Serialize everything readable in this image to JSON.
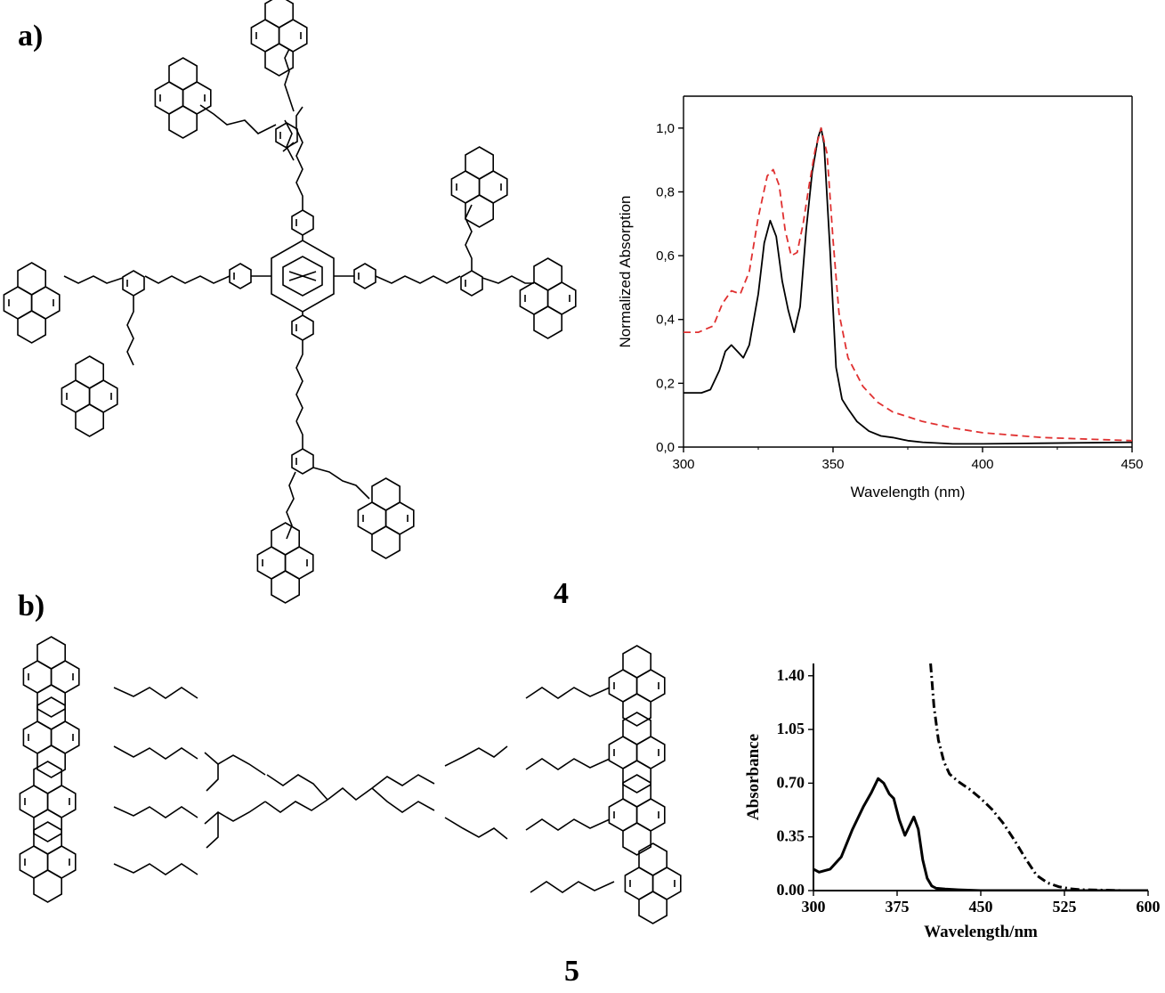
{
  "panel_labels": {
    "a": "a)",
    "b": "b)"
  },
  "compound_numbers": {
    "a": "4",
    "b": "5"
  },
  "chart_data": [
    {
      "type": "line",
      "xlabel": "Wavelength (nm)",
      "ylabel": "Normalized Absorption",
      "xlim": [
        300,
        450
      ],
      "ylim": [
        0,
        1.1
      ],
      "xticks": [
        "300",
        "350",
        "400",
        "450"
      ],
      "yticks": [
        "0,0",
        "0,2",
        "0,4",
        "0,6",
        "0,8",
        "1,0"
      ],
      "grid": false,
      "series": [
        {
          "color": "#000000",
          "style": "solid",
          "x": [
            300,
            303,
            306,
            309,
            312,
            314,
            316,
            318,
            320,
            322,
            325,
            327,
            329,
            331,
            333,
            335,
            337,
            339,
            341,
            343,
            345,
            346,
            347,
            349,
            351,
            353,
            355,
            358,
            362,
            366,
            370,
            375,
            380,
            390,
            400,
            420,
            450
          ],
          "y": [
            0.17,
            0.17,
            0.17,
            0.18,
            0.24,
            0.3,
            0.32,
            0.3,
            0.28,
            0.32,
            0.48,
            0.64,
            0.71,
            0.66,
            0.52,
            0.43,
            0.36,
            0.44,
            0.68,
            0.86,
            0.97,
            1.0,
            0.95,
            0.62,
            0.25,
            0.15,
            0.12,
            0.08,
            0.05,
            0.035,
            0.03,
            0.02,
            0.015,
            0.01,
            0.01,
            0.012,
            0.015
          ]
        },
        {
          "color": "#e03030",
          "style": "dashed",
          "x": [
            300,
            305,
            310,
            313,
            316,
            319,
            322,
            325,
            328,
            330,
            332,
            334,
            336,
            338,
            340,
            342,
            344,
            346,
            348,
            350,
            352,
            355,
            360,
            365,
            370,
            380,
            390,
            400,
            420,
            450
          ],
          "y": [
            0.36,
            0.36,
            0.38,
            0.45,
            0.49,
            0.48,
            0.55,
            0.72,
            0.85,
            0.87,
            0.82,
            0.68,
            0.6,
            0.61,
            0.7,
            0.82,
            0.93,
            1.0,
            0.92,
            0.65,
            0.42,
            0.28,
            0.19,
            0.14,
            0.11,
            0.08,
            0.06,
            0.045,
            0.03,
            0.02
          ]
        }
      ]
    },
    {
      "type": "line",
      "xlabel": "Wavelength/nm",
      "ylabel": "Absorbance",
      "xlim": [
        300,
        600
      ],
      "ylim": [
        0,
        1.48
      ],
      "xticks": [
        "300",
        "375",
        "450",
        "525",
        "600"
      ],
      "yticks": [
        "0.00",
        "0.35",
        "0.70",
        "1.05",
        "1.40"
      ],
      "grid": false,
      "series": [
        {
          "color": "#000000",
          "style": "solid",
          "x": [
            300,
            305,
            315,
            325,
            335,
            345,
            352,
            358,
            363,
            368,
            372,
            377,
            382,
            386,
            390,
            394,
            398,
            402,
            406,
            410,
            418,
            430,
            450,
            480,
            520,
            560,
            600
          ],
          "y": [
            0.14,
            0.12,
            0.14,
            0.22,
            0.4,
            0.55,
            0.64,
            0.73,
            0.7,
            0.63,
            0.6,
            0.46,
            0.36,
            0.42,
            0.48,
            0.4,
            0.2,
            0.08,
            0.03,
            0.015,
            0.01,
            0.005,
            0.0,
            0.0,
            0.0,
            0.0,
            0.0
          ]
        },
        {
          "color": "#000000",
          "style": "dashdot",
          "x": [
            405,
            408,
            412,
            417,
            422,
            430,
            440,
            450,
            460,
            470,
            480,
            490,
            500,
            510,
            520,
            530,
            540,
            560,
            580,
            600
          ],
          "y": [
            1.48,
            1.2,
            0.98,
            0.84,
            0.76,
            0.71,
            0.66,
            0.6,
            0.53,
            0.44,
            0.33,
            0.21,
            0.1,
            0.05,
            0.025,
            0.012,
            0.006,
            0.003,
            0.0,
            0.0
          ]
        }
      ]
    }
  ]
}
